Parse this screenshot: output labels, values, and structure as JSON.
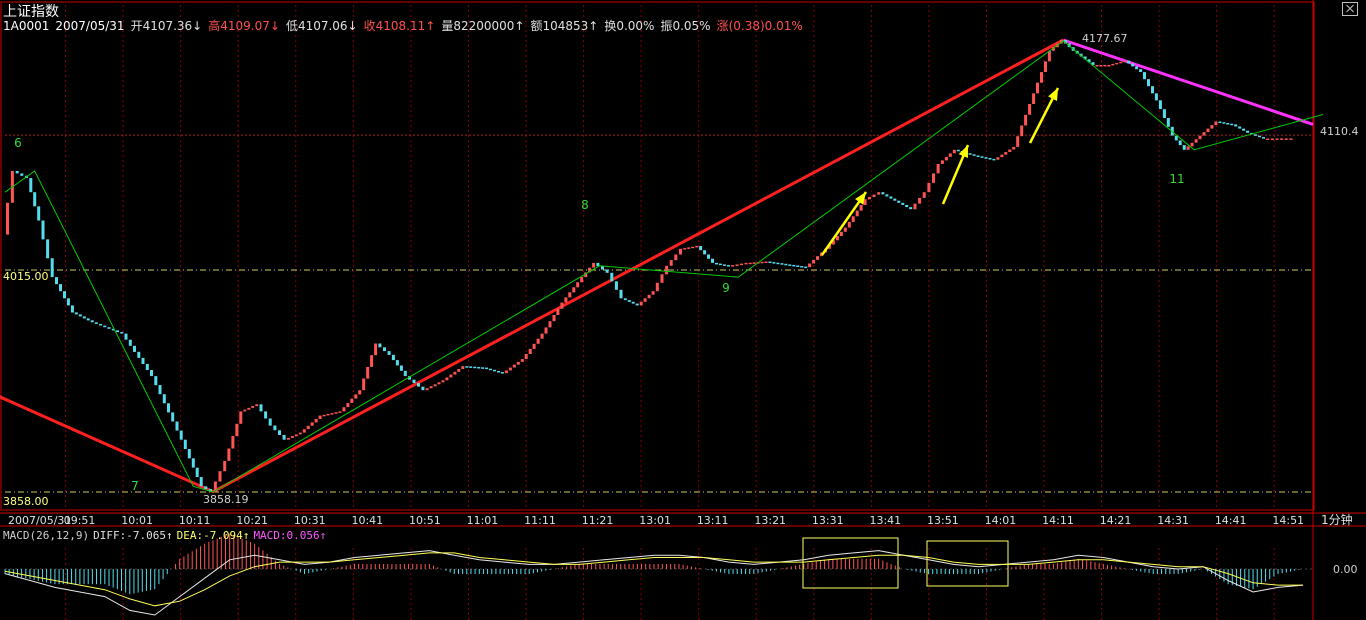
{
  "header": {
    "title": "上证指数",
    "code": "1A0001",
    "date": "2007/05/31",
    "open": "开4107.36↓",
    "high": "高4109.07↓",
    "low": "低4107.06↓",
    "close": "收4108.11↑",
    "volume": "量82200000↑",
    "amount": "额104853↑",
    "turnover": "换0.00%",
    "amplitude": "振0.05%",
    "change": "涨(0.38)0.01%"
  },
  "macd_header": {
    "params": "MACD(26,12,9)",
    "diff": "DIFF:-7.065↑",
    "dea": "DEA:-7.094↑",
    "macd": "MACD:0.056↑"
  },
  "colors": {
    "up": "#ff5555",
    "down": "#55ddee",
    "trend": "#ff2020",
    "downtrend": "#ff33ff",
    "wave": "#00cc00",
    "arrow": "#ffff00",
    "grid": "#8b0000",
    "axis": "#cc0000"
  },
  "chart_data": [
    {
      "type": "line",
      "title": "上证指数 1分钟",
      "period": "1分钟",
      "x_tick_labels": [
        "2007/05/31",
        "09:51",
        "10:01",
        "10:11",
        "10:21",
        "10:31",
        "10:41",
        "10:51",
        "11:01",
        "11:11",
        "11:21",
        "13:01",
        "13:11",
        "13:21",
        "13:31",
        "13:41",
        "13:51",
        "14:01",
        "14:11",
        "14:21",
        "14:31",
        "14:41",
        "14:51"
      ],
      "y_range": [
        3858.0,
        4177.67
      ],
      "y_labels": [
        "4015.00",
        "3858.00",
        "4110.4"
      ],
      "price_labels": {
        "high": "4177.67",
        "low": "3858.19"
      },
      "wave_labels": [
        "6",
        "7",
        "8",
        "9",
        "11"
      ],
      "price_series": [
        {
          "x": 0,
          "y": 4040
        },
        {
          "x": 5,
          "y": 4085
        },
        {
          "x": 12,
          "y": 4080
        },
        {
          "x": 18,
          "y": 4050
        },
        {
          "x": 25,
          "y": 4010
        },
        {
          "x": 35,
          "y": 3985
        },
        {
          "x": 45,
          "y": 3978
        },
        {
          "x": 60,
          "y": 3970
        },
        {
          "x": 75,
          "y": 3940
        },
        {
          "x": 90,
          "y": 3895
        },
        {
          "x": 100,
          "y": 3862
        },
        {
          "x": 105,
          "y": 3858.19
        },
        {
          "x": 112,
          "y": 3880
        },
        {
          "x": 120,
          "y": 3915
        },
        {
          "x": 128,
          "y": 3920
        },
        {
          "x": 135,
          "y": 3905
        },
        {
          "x": 142,
          "y": 3895
        },
        {
          "x": 150,
          "y": 3900
        },
        {
          "x": 160,
          "y": 3912
        },
        {
          "x": 170,
          "y": 3915
        },
        {
          "x": 180,
          "y": 3930
        },
        {
          "x": 188,
          "y": 3963
        },
        {
          "x": 195,
          "y": 3955
        },
        {
          "x": 203,
          "y": 3940
        },
        {
          "x": 212,
          "y": 3930
        },
        {
          "x": 222,
          "y": 3937
        },
        {
          "x": 232,
          "y": 3947
        },
        {
          "x": 242,
          "y": 3946
        },
        {
          "x": 252,
          "y": 3942
        },
        {
          "x": 262,
          "y": 3952
        },
        {
          "x": 272,
          "y": 3970
        },
        {
          "x": 282,
          "y": 3992
        },
        {
          "x": 292,
          "y": 4010
        },
        {
          "x": 298,
          "y": 4020
        },
        {
          "x": 305,
          "y": 4013
        },
        {
          "x": 312,
          "y": 3995
        },
        {
          "x": 320,
          "y": 3990
        },
        {
          "x": 328,
          "y": 4000
        },
        {
          "x": 335,
          "y": 4018
        },
        {
          "x": 342,
          "y": 4030
        },
        {
          "x": 350,
          "y": 4032
        },
        {
          "x": 358,
          "y": 4020
        },
        {
          "x": 366,
          "y": 4018
        },
        {
          "x": 375,
          "y": 4020
        },
        {
          "x": 385,
          "y": 4021
        },
        {
          "x": 395,
          "y": 4019
        },
        {
          "x": 405,
          "y": 4017
        },
        {
          "x": 415,
          "y": 4030
        },
        {
          "x": 425,
          "y": 4045
        },
        {
          "x": 435,
          "y": 4065
        },
        {
          "x": 442,
          "y": 4070
        },
        {
          "x": 450,
          "y": 4064
        },
        {
          "x": 458,
          "y": 4058
        },
        {
          "x": 465,
          "y": 4070
        },
        {
          "x": 472,
          "y": 4090
        },
        {
          "x": 480,
          "y": 4100
        },
        {
          "x": 490,
          "y": 4096
        },
        {
          "x": 500,
          "y": 4093
        },
        {
          "x": 510,
          "y": 4102
        },
        {
          "x": 520,
          "y": 4140
        },
        {
          "x": 528,
          "y": 4170
        },
        {
          "x": 534,
          "y": 4177.67
        },
        {
          "x": 540,
          "y": 4170
        },
        {
          "x": 550,
          "y": 4160
        },
        {
          "x": 558,
          "y": 4160
        },
        {
          "x": 566,
          "y": 4163
        },
        {
          "x": 574,
          "y": 4155
        },
        {
          "x": 582,
          "y": 4135
        },
        {
          "x": 590,
          "y": 4110
        },
        {
          "x": 596,
          "y": 4100
        },
        {
          "x": 604,
          "y": 4110
        },
        {
          "x": 612,
          "y": 4120
        },
        {
          "x": 620,
          "y": 4118
        },
        {
          "x": 628,
          "y": 4112
        },
        {
          "x": 636,
          "y": 4108
        },
        {
          "x": 650,
          "y": 4108.11
        }
      ],
      "trend_lines": [
        {
          "name": "uptrend",
          "from": {
            "x": -100,
            "y": 3986
          },
          "via": {
            "x": 105,
            "y": 3858.19
          },
          "to": {
            "x": 534,
            "y": 4177.67
          }
        },
        {
          "name": "downtrend",
          "from": {
            "x": 534,
            "y": 4177.67
          },
          "to": {
            "x": 660,
            "y": 4118
          }
        }
      ],
      "wave_path": [
        {
          "x": 0,
          "y": 4070
        },
        {
          "x": 15,
          "y": 4085
        },
        {
          "x": 95,
          "y": 3862
        },
        {
          "x": 105,
          "y": 3858
        },
        {
          "x": 300,
          "y": 4018
        },
        {
          "x": 370,
          "y": 4010
        },
        {
          "x": 534,
          "y": 4177
        },
        {
          "x": 600,
          "y": 4100
        },
        {
          "x": 665,
          "y": 4125
        }
      ]
    },
    {
      "type": "line",
      "title": "MACD(26,12,9)",
      "y_tick_labels": [
        "0.00"
      ],
      "series": [
        {
          "name": "DIFF",
          "values": [
            -2,
            -5,
            -8,
            -10,
            -12,
            -18,
            -20,
            -12,
            -4,
            4,
            6,
            4,
            2,
            3,
            5,
            6,
            7,
            8,
            6,
            4,
            3,
            2,
            2,
            3,
            4,
            5,
            6,
            6,
            5,
            3,
            2,
            3,
            4,
            6,
            7,
            8,
            6,
            4,
            2,
            1,
            2,
            3,
            4,
            6,
            5,
            3,
            1,
            0,
            1,
            -5,
            -10,
            -8,
            -7
          ]
        },
        {
          "name": "DEA",
          "values": [
            -1,
            -3,
            -5,
            -7,
            -9,
            -13,
            -16,
            -14,
            -9,
            -3,
            1,
            3,
            3,
            3,
            4,
            5,
            6,
            7,
            7,
            5,
            4,
            3,
            2,
            2,
            3,
            4,
            5,
            5,
            5,
            4,
            3,
            3,
            3,
            4,
            5,
            6,
            6,
            5,
            3,
            2,
            2,
            2,
            3,
            4,
            4,
            3,
            2,
            1,
            1,
            -2,
            -6,
            -7,
            -7
          ]
        },
        {
          "name": "MACD",
          "values": [
            -1,
            -2,
            -3,
            -3,
            -3,
            -5,
            -4,
            2,
            5,
            7,
            5,
            1,
            -1,
            0,
            1,
            1,
            1,
            1,
            -1,
            -1,
            -1,
            -1,
            0,
            1,
            1,
            1,
            1,
            1,
            0,
            -1,
            -1,
            0,
            1,
            2,
            2,
            2,
            0,
            -1,
            -1,
            -1,
            0,
            1,
            1,
            2,
            1,
            0,
            -1,
            -1,
            0,
            -3,
            -4,
            -1,
            0
          ]
        }
      ]
    }
  ]
}
